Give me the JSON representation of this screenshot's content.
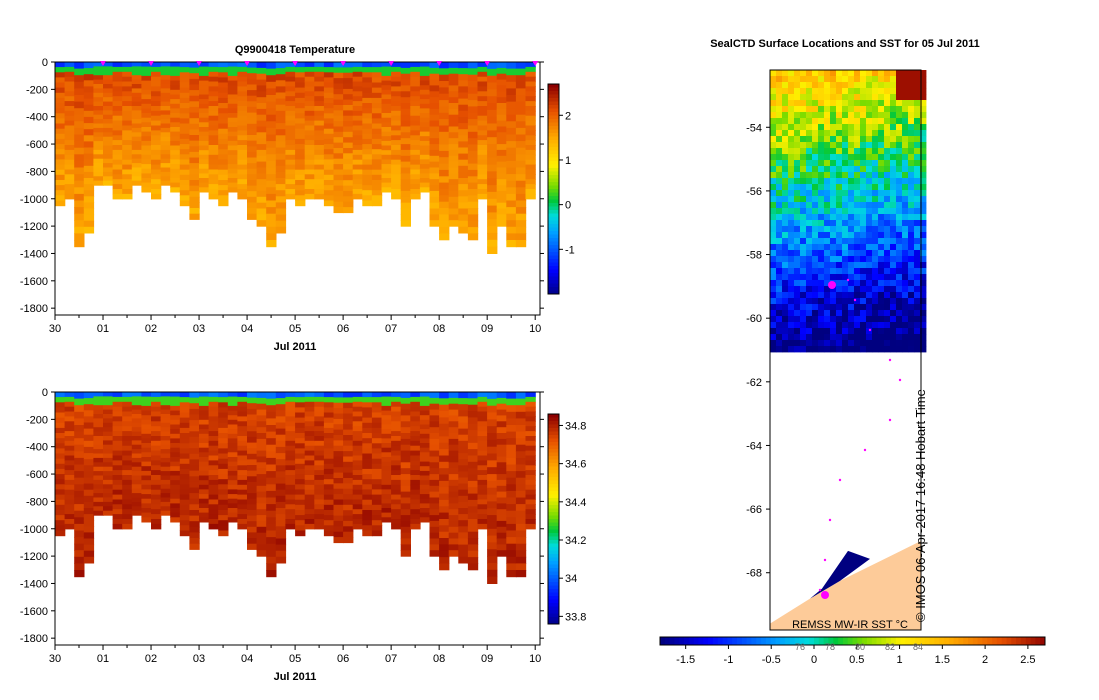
{
  "chart_data": [
    {
      "type": "heatmap",
      "title": "Q9900418  Temperature",
      "xlabel": "Jul 2011",
      "x_ticks": [
        "30",
        "01",
        "02",
        "03",
        "04",
        "05",
        "06",
        "07",
        "08",
        "09",
        "10"
      ],
      "xlim_days": [
        0,
        10.1
      ],
      "ylim": [
        -1850,
        0
      ],
      "y_ticks": [
        0,
        -200,
        -400,
        -600,
        -800,
        -1000,
        -1200,
        -1400,
        -1600,
        -1800
      ],
      "profile_markers_days": [
        1,
        2,
        3,
        4,
        5,
        6,
        7,
        8,
        9,
        10
      ],
      "colorbar": {
        "vmin": -2.0,
        "vmax": 2.7,
        "ticks": [
          2,
          1,
          0,
          -1
        ],
        "tick_labels": [
          "2",
          "1",
          "0",
          "-1"
        ]
      },
      "surface_value": -0.8,
      "deep_value": 2.0,
      "profiles_days": [
        0.1,
        0.3,
        0.5,
        0.7,
        0.9,
        1.1,
        1.3,
        1.5,
        1.7,
        1.9,
        2.1,
        2.3,
        2.5,
        2.7,
        2.9,
        3.1,
        3.3,
        3.5,
        3.7,
        3.9,
        4.1,
        4.3,
        4.5,
        4.7,
        4.9,
        5.1,
        5.3,
        5.5,
        5.7,
        5.9,
        6.1,
        6.3,
        6.5,
        6.7,
        6.9,
        7.1,
        7.3,
        7.5,
        7.7,
        7.9,
        8.1,
        8.3,
        8.5,
        8.7,
        8.9,
        9.1,
        9.3,
        9.5,
        9.7,
        9.9
      ],
      "max_depths": [
        -1050,
        -1000,
        -1350,
        -1250,
        -900,
        -900,
        -1000,
        -1000,
        -900,
        -950,
        -1000,
        -900,
        -950,
        -1050,
        -1150,
        -950,
        -1000,
        -1050,
        -950,
        -1000,
        -1150,
        -1200,
        -1350,
        -1250,
        -1000,
        -1050,
        -1000,
        -1000,
        -1050,
        -1100,
        -1100,
        -1000,
        -1050,
        -1050,
        -950,
        -1000,
        -1200,
        -1000,
        -950,
        -1200,
        -1300,
        -1200,
        -1250,
        -1300,
        -1000,
        -1400,
        -1200,
        -1350,
        -1350,
        -1000
      ]
    },
    {
      "type": "heatmap",
      "title": "",
      "xlabel": "Jul 2011",
      "x_ticks": [
        "30",
        "01",
        "02",
        "03",
        "04",
        "05",
        "06",
        "07",
        "08",
        "09",
        "10"
      ],
      "xlim_days": [
        0,
        10.1
      ],
      "ylim": [
        -1850,
        0
      ],
      "y_ticks": [
        0,
        -200,
        -400,
        -600,
        -800,
        -1000,
        -1200,
        -1400,
        -1600,
        -1800
      ],
      "colorbar": {
        "vmin": 33.76,
        "vmax": 34.86,
        "ticks": [
          34.8,
          34.6,
          34.4,
          34.2,
          34,
          33.8
        ],
        "tick_labels": [
          "34.8",
          "34.6",
          "34.4",
          "34.2",
          "34",
          "33.8"
        ]
      },
      "surface_value": 34.05,
      "deep_value": 34.75,
      "profiles_days": [
        0.1,
        0.3,
        0.5,
        0.7,
        0.9,
        1.1,
        1.3,
        1.5,
        1.7,
        1.9,
        2.1,
        2.3,
        2.5,
        2.7,
        2.9,
        3.1,
        3.3,
        3.5,
        3.7,
        3.9,
        4.1,
        4.3,
        4.5,
        4.7,
        4.9,
        5.1,
        5.3,
        5.5,
        5.7,
        5.9,
        6.1,
        6.3,
        6.5,
        6.7,
        6.9,
        7.1,
        7.3,
        7.5,
        7.7,
        7.9,
        8.1,
        8.3,
        8.5,
        8.7,
        8.9,
        9.1,
        9.3,
        9.5,
        9.7,
        9.9
      ],
      "max_depths": [
        -1050,
        -1000,
        -1350,
        -1250,
        -900,
        -900,
        -1000,
        -1000,
        -900,
        -950,
        -1000,
        -900,
        -950,
        -1050,
        -1150,
        -950,
        -1000,
        -1050,
        -950,
        -1000,
        -1150,
        -1200,
        -1350,
        -1250,
        -1000,
        -1050,
        -1000,
        -1000,
        -1050,
        -1100,
        -1100,
        -1000,
        -1050,
        -1050,
        -950,
        -1000,
        -1200,
        -1000,
        -950,
        -1200,
        -1300,
        -1200,
        -1250,
        -1300,
        -1000,
        -1400,
        -1200,
        -1350,
        -1350,
        -1000
      ]
    },
    {
      "type": "heatmap",
      "title": "SealCTD Surface Locations and SST for 05 Jul 2011",
      "y_ticks": [
        -54,
        -56,
        -58,
        -60,
        -62,
        -64,
        -66,
        -68
      ],
      "ylim": [
        -69.8,
        -52.2
      ],
      "ice_edge_lat": -60.9,
      "land_coast_lats": [
        -67.0,
        -69.6
      ],
      "colorbar": {
        "vmin": -1.8,
        "vmax": 2.7,
        "ticks": [
          -1.5,
          -1,
          -0.5,
          0,
          0.5,
          1,
          1.5,
          2,
          2.5
        ],
        "tick_labels": [
          "-1.5",
          "-1",
          "-0.5",
          "0",
          "0.5",
          "1",
          "1.5",
          "2",
          "2.5"
        ],
        "secondary_labels": [
          "76",
          "78",
          "80",
          "82",
          "84"
        ],
        "label": "REMSS MW-IR SST °C"
      },
      "credit": "© IMOS 06-Apr-2017 16:48 Hobart Time"
    }
  ]
}
